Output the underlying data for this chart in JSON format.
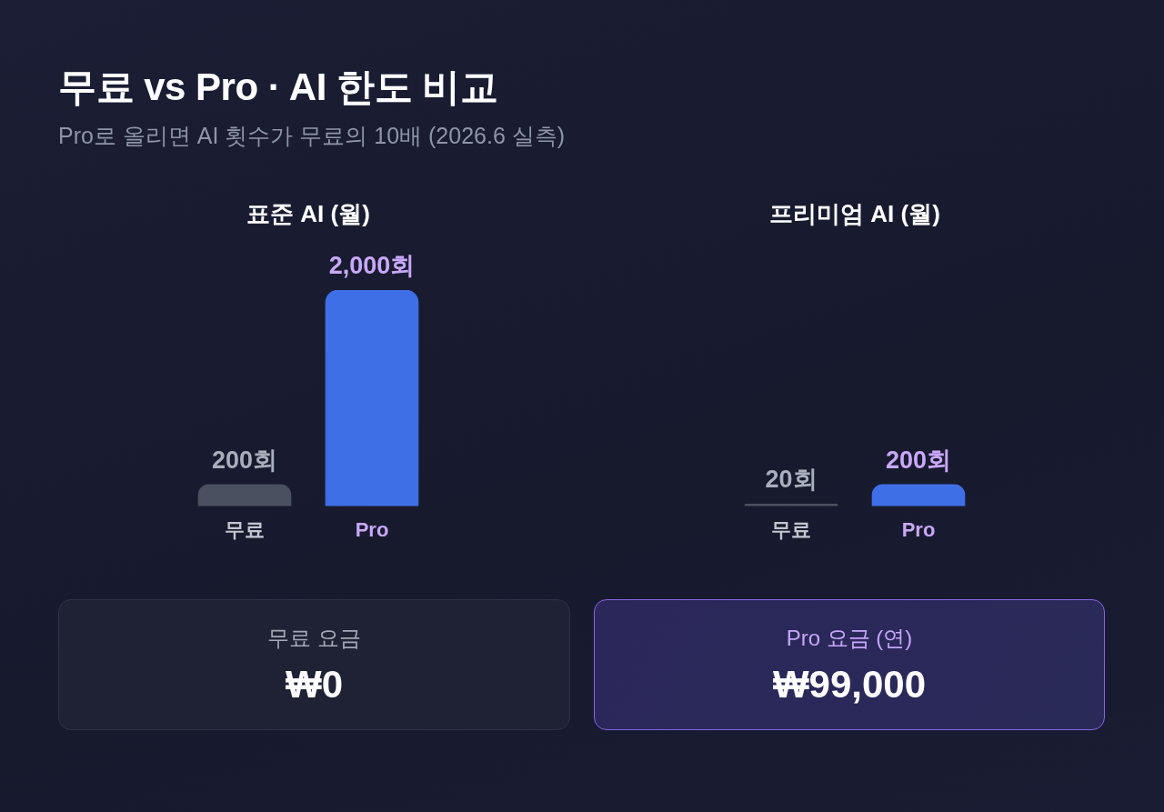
{
  "chart_data": [
    {
      "type": "other",
      "title": "무료 vs Pro · AI 한도 비교",
      "subtitle": "Pro로 올리면 AI 횟수가 무료의 10배 (2026.6 실측)"
    },
    {
      "type": "bar",
      "title": "표준 AI (월)",
      "categories": [
        "무료",
        "Pro"
      ],
      "values": [
        200,
        2000
      ],
      "colors": [
        "#4b5060",
        "#3f6fe6"
      ],
      "value_labels": [
        "200회",
        "2,000회"
      ],
      "ylim": [
        0,
        2000
      ],
      "tick_labels": "x"
    },
    {
      "type": "bar",
      "title": "프리미엄 AI (월)",
      "categories": [
        "무료",
        "Pro"
      ],
      "values": [
        20,
        200
      ],
      "colors": [
        "#4b5060",
        "#3f6fe6"
      ],
      "value_labels": [
        "20회",
        "200회"
      ],
      "tick_labels": "x"
    },
    {
      "type": "other",
      "title": "무료 요금",
      "annotations": [
        "₩0"
      ]
    },
    {
      "type": "other",
      "title": "Pro 요금 (연)",
      "annotations": [
        "₩99,000"
      ]
    }
  ]
}
